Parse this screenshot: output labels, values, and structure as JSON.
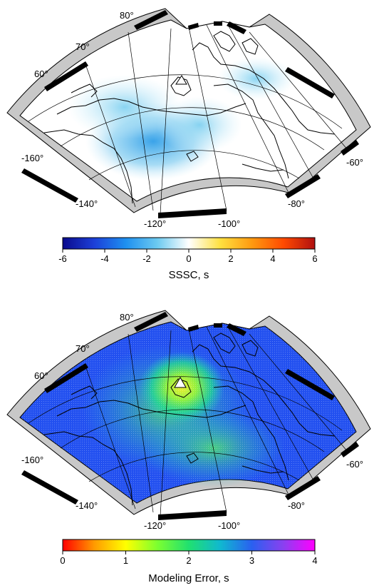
{
  "maps": [
    {
      "id": "top",
      "colorbar": {
        "label": "SSSC, s",
        "min": -6,
        "max": 6,
        "ticks": [
          "-6",
          "-4",
          "-2",
          "0",
          "2",
          "4",
          "6"
        ],
        "stops": [
          "#0a0a8c",
          "#1c3fd8",
          "#1e90f0",
          "#6ccaf0",
          "#ffffff",
          "#ffe040",
          "#ff9a10",
          "#ff4a00",
          "#b01010"
        ]
      },
      "lat_labels": [
        "60°",
        "70°",
        "80°"
      ],
      "lon_labels": [
        "-160°",
        "-140°",
        "-120°",
        "-100°",
        "-80°",
        "-60°"
      ],
      "station_icon": "triangle-station-icon"
    },
    {
      "id": "bottom",
      "colorbar": {
        "label": "Modeling Error, s",
        "min": 0,
        "max": 4,
        "ticks": [
          "0",
          "1",
          "2",
          "3",
          "4"
        ],
        "stops": [
          "#ff0000",
          "#ff9a00",
          "#ffff00",
          "#7cff30",
          "#20e070",
          "#10b8d0",
          "#2a60f0",
          "#8a40f0",
          "#ff00ff"
        ]
      },
      "lat_labels": [
        "60°",
        "70°",
        "80°"
      ],
      "lon_labels": [
        "-160°",
        "-140°",
        "-120°",
        "-100°",
        "-80°",
        "-60°"
      ],
      "station_icon": "triangle-station-icon"
    }
  ]
}
